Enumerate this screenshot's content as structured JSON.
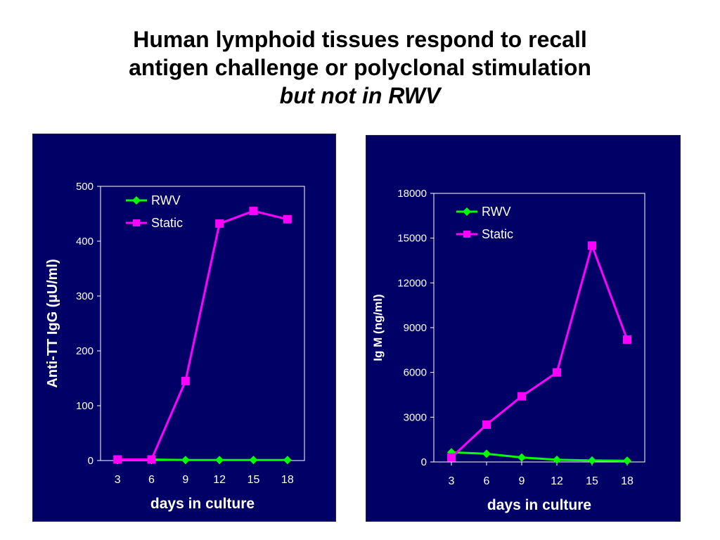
{
  "slide": {
    "title_line1": "Human lymphoid tissues respond to recall",
    "title_line2": "antigen challenge or polyclonal stimulation",
    "title_line3": "but not in RWV"
  },
  "colors": {
    "panel_bg": "#000066",
    "plot_bg": "#000066",
    "axis": "#ffffff",
    "rwv": "#00ff00",
    "static": "#ff00ff",
    "text": "#ffffff"
  },
  "chart_data": [
    {
      "type": "line",
      "ylabel": "Anti-TT IgG (μU/ml)",
      "xlabel": "days in culture",
      "x": [
        3,
        6,
        9,
        12,
        15,
        18
      ],
      "ylim": [
        0,
        500
      ],
      "yticks": [
        0,
        100,
        200,
        300,
        400,
        500
      ],
      "legend_position": "top-left",
      "grid": false,
      "series": [
        {
          "name": "RWV",
          "marker": "diamond",
          "values": [
            2,
            2,
            1,
            1,
            1,
            1
          ]
        },
        {
          "name": "Static",
          "marker": "square",
          "values": [
            2,
            2,
            145,
            432,
            455,
            440
          ]
        }
      ]
    },
    {
      "type": "line",
      "ylabel": "Ig M (ng/ml)",
      "xlabel": "days in culture",
      "x": [
        3,
        6,
        9,
        12,
        15,
        18
      ],
      "ylim": [
        0,
        18000
      ],
      "yticks": [
        0,
        3000,
        6000,
        9000,
        12000,
        15000,
        18000
      ],
      "legend_position": "top-left",
      "grid": false,
      "series": [
        {
          "name": "RWV",
          "marker": "diamond",
          "values": [
            650,
            550,
            300,
            150,
            100,
            80
          ]
        },
        {
          "name": "Static",
          "marker": "square",
          "values": [
            300,
            2500,
            4400,
            6000,
            14500,
            8200
          ]
        }
      ]
    }
  ]
}
